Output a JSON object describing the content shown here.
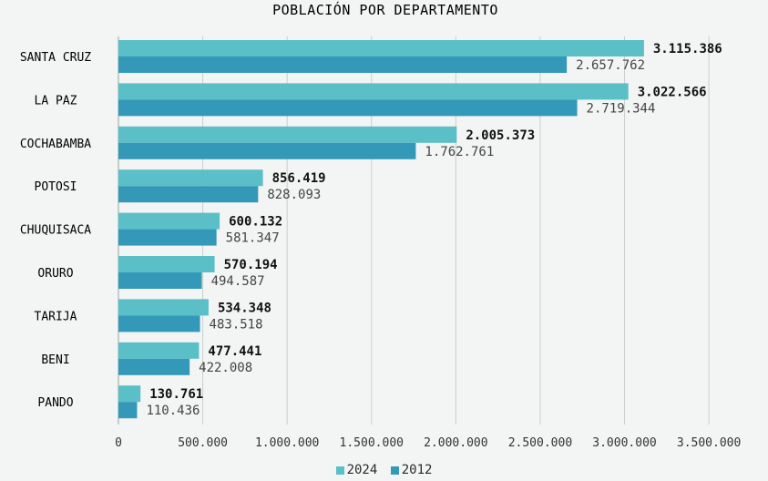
{
  "colors": {
    "series_2024": "#5bbfc8",
    "series_2012": "#3498b8",
    "grid": "#c9cfcd"
  },
  "chart_data": {
    "type": "bar",
    "orientation": "horizontal",
    "title": "POBLACIÓN POR DEPARTAMENTO",
    "categories": [
      "SANTA CRUZ",
      "LA PAZ",
      "COCHABAMBA",
      "POTOSI",
      "CHUQUISACA",
      "ORURO",
      "TARIJA",
      "BENI",
      "PANDO"
    ],
    "series": [
      {
        "name": "2024",
        "values": [
          3115386,
          3022566,
          2005373,
          856419,
          600132,
          570194,
          534348,
          477441,
          130761
        ],
        "labels": [
          "3.115.386",
          "3.022.566",
          "2.005.373",
          "856.419",
          "600.132",
          "570.194",
          "534.348",
          "477.441",
          "130.761"
        ]
      },
      {
        "name": "2012",
        "values": [
          2657762,
          2719344,
          1762761,
          828093,
          581347,
          494587,
          483518,
          422008,
          110436
        ],
        "labels": [
          "2.657.762",
          "2.719.344",
          "1.762.761",
          "828.093",
          "581.347",
          "494.587",
          "483.518",
          "422.008",
          "110.436"
        ]
      }
    ],
    "xlim": [
      0,
      3500000
    ],
    "xticks": [
      0,
      500000,
      1000000,
      1500000,
      2000000,
      2500000,
      3000000,
      3500000
    ],
    "xtick_labels": [
      "0",
      "500.000",
      "1.000.000",
      "1.500.000",
      "2.000.000",
      "2.500.000",
      "3.000.000",
      "3.500.000"
    ],
    "grid": true,
    "legend_position": "bottom"
  }
}
